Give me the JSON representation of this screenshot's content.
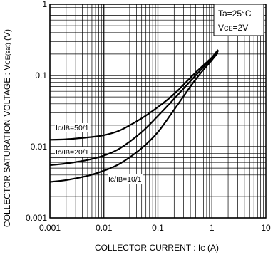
{
  "chart_data": {
    "type": "line",
    "title": "",
    "xlabel": "COLLECTOR  CURRENT : I",
    "xlabel_sub": "C",
    "xlabel_unit": " (A)",
    "ylabel": "COLLECTOR  SATURATION  VOLTAGE : V",
    "ylabel_sub": "CE(sat)",
    "ylabel_unit": " (V)",
    "x_scale": "log",
    "y_scale": "log",
    "xlim": [
      0.001,
      10
    ],
    "ylim": [
      0.001,
      1
    ],
    "grid": true,
    "x_ticks": [
      "0.001",
      "0.01",
      "0.1",
      "1",
      "10"
    ],
    "y_ticks": [
      "0.001",
      "0.01",
      "0.1",
      "1"
    ],
    "conditions": {
      "ta": "Ta=25°C",
      "vce_main": "V",
      "vce_sub": "CE",
      "vce_val": "=2V"
    },
    "series": [
      {
        "name": "Ic/IB=50/1",
        "label_main": "Ic/I",
        "label_sub": "B",
        "label_val": "=50/1",
        "x": [
          0.001,
          0.002,
          0.005,
          0.01,
          0.02,
          0.05,
          0.1,
          0.2,
          0.5,
          1,
          1.3
        ],
        "y": [
          0.0125,
          0.0127,
          0.0135,
          0.0145,
          0.017,
          0.025,
          0.036,
          0.055,
          0.11,
          0.18,
          0.23
        ]
      },
      {
        "name": "Ic/IB=20/1",
        "label_main": "Ic/I",
        "label_sub": "B",
        "label_val": "=20/1",
        "x": [
          0.001,
          0.002,
          0.005,
          0.01,
          0.02,
          0.05,
          0.1,
          0.2,
          0.5,
          1,
          1.3
        ],
        "y": [
          0.0055,
          0.0058,
          0.0065,
          0.0075,
          0.0095,
          0.016,
          0.027,
          0.047,
          0.1,
          0.175,
          0.22
        ]
      },
      {
        "name": "Ic/IB=10/1",
        "label_main": "Ic/I",
        "label_sub": "B",
        "label_val": "=10/1",
        "x": [
          0.001,
          0.002,
          0.005,
          0.01,
          0.02,
          0.05,
          0.1,
          0.2,
          0.5,
          1,
          1.3
        ],
        "y": [
          0.0032,
          0.0034,
          0.0039,
          0.0046,
          0.0058,
          0.0095,
          0.016,
          0.033,
          0.088,
          0.165,
          0.21
        ]
      }
    ]
  }
}
